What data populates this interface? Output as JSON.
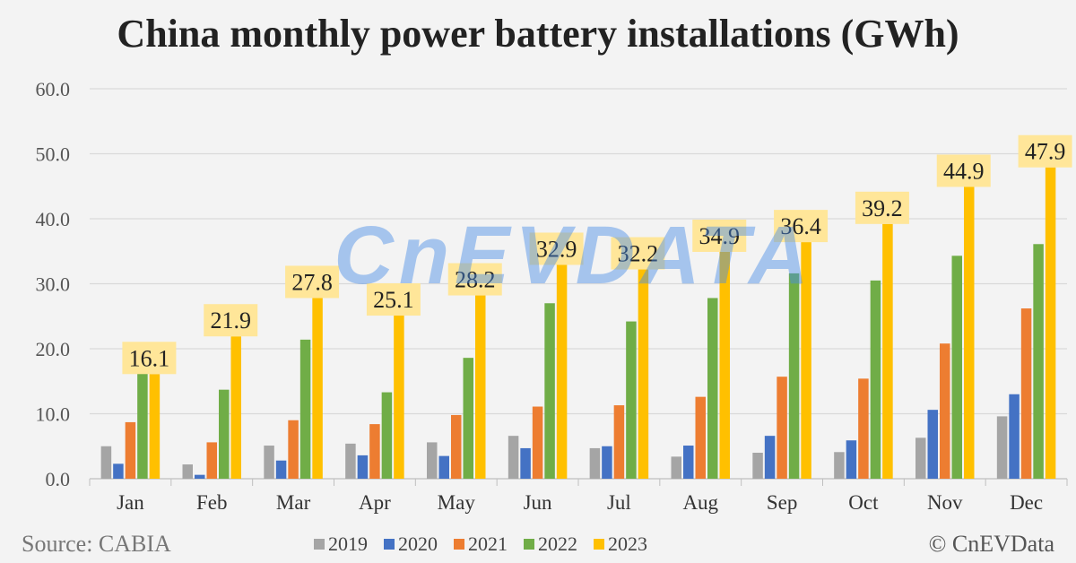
{
  "title": "China monthly power battery installations (GWh)",
  "source": "Source: CABIA",
  "copyright": "© CnEVData",
  "watermark": "CnEVDATA",
  "chart_data": {
    "type": "bar",
    "title": "China monthly power battery installations (GWh)",
    "categories": [
      "Jan",
      "Feb",
      "Mar",
      "Apr",
      "May",
      "Jun",
      "Jul",
      "Aug",
      "Sep",
      "Oct",
      "Nov",
      "Dec"
    ],
    "ylim": [
      0,
      60
    ],
    "yticks": [
      "0.0",
      "10.0",
      "20.0",
      "30.0",
      "40.0",
      "50.0",
      "60.0"
    ],
    "grid": true,
    "legend_position": "bottom",
    "series": [
      {
        "name": "2019",
        "color": "#a5a5a5",
        "values": [
          5.0,
          2.2,
          5.1,
          5.4,
          5.6,
          6.6,
          4.7,
          3.4,
          4.0,
          4.1,
          6.3,
          9.6
        ]
      },
      {
        "name": "2020",
        "color": "#4472c4",
        "values": [
          2.3,
          0.6,
          2.8,
          3.6,
          3.5,
          4.7,
          5.0,
          5.1,
          6.6,
          5.9,
          10.6,
          13.0
        ]
      },
      {
        "name": "2021",
        "color": "#ed7d31",
        "values": [
          8.7,
          5.6,
          9.0,
          8.4,
          9.8,
          11.1,
          11.3,
          12.6,
          15.7,
          15.4,
          20.8,
          26.2
        ]
      },
      {
        "name": "2022",
        "color": "#70ad47",
        "values": [
          16.2,
          13.7,
          21.4,
          13.3,
          18.6,
          27.0,
          24.2,
          27.8,
          31.6,
          30.5,
          34.3,
          36.1
        ]
      },
      {
        "name": "2023",
        "color": "#ffc000",
        "values": [
          16.1,
          21.9,
          27.8,
          25.1,
          28.2,
          32.9,
          32.2,
          34.9,
          36.4,
          39.2,
          44.9,
          47.9
        ]
      }
    ],
    "data_labels": {
      "series": "2023",
      "values": [
        "16.1",
        "21.9",
        "27.8",
        "25.1",
        "28.2",
        "32.9",
        "32.2",
        "34.9",
        "36.4",
        "39.2",
        "44.9",
        "47.9"
      ],
      "background": "#ffe699"
    }
  }
}
